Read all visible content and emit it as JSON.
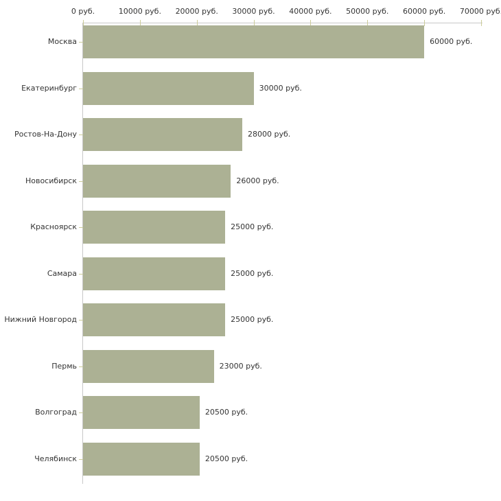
{
  "chart_data": {
    "type": "bar",
    "orientation": "horizontal",
    "title": "",
    "xlabel": "",
    "ylabel": "",
    "xlim": [
      0,
      70000
    ],
    "x_tick_step": 10000,
    "x_tick_labels": [
      "0 руб.",
      "10000 руб.",
      "20000 руб.",
      "30000 руб.",
      "40000 руб.",
      "50000 руб.",
      "60000 руб.",
      "70000 руб."
    ],
    "categories": [
      "Москва",
      "Екатеринбург",
      "Ростов-На-Дону",
      "Новосибирск",
      "Красноярск",
      "Самара",
      "Нижний Новгород",
      "Пермь",
      "Волгоград",
      "Челябинск"
    ],
    "values": [
      60000,
      30000,
      28000,
      26000,
      25000,
      25000,
      25000,
      23000,
      20500,
      20500
    ],
    "value_labels": [
      "60000 руб.",
      "30000 руб.",
      "28000 руб.",
      "26000 руб.",
      "25000 руб.",
      "25000 руб.",
      "25000 руб.",
      "23000 руб.",
      "20500 руб.",
      "20500 руб."
    ],
    "grid": false,
    "legend": false,
    "colors": {
      "bar": "#acb194",
      "axis_line": "#c8c8c8",
      "tick": "#cccc99",
      "text": "#333333",
      "background": "#ffffff"
    }
  }
}
